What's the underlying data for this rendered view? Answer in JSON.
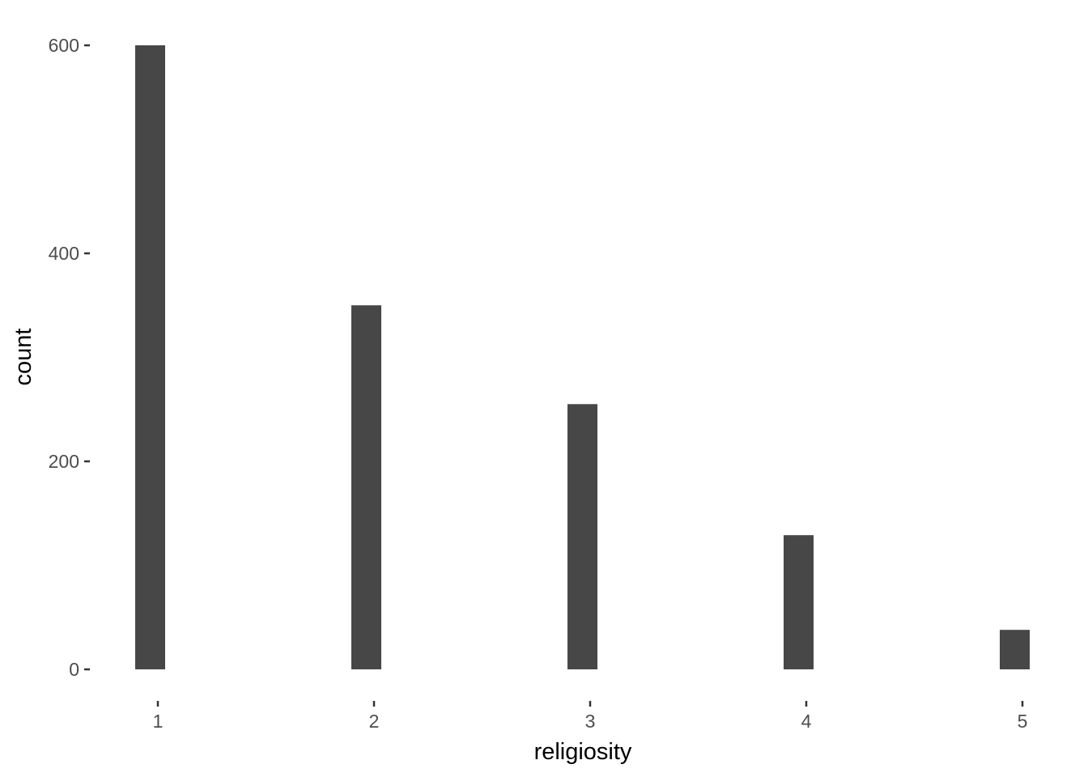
{
  "chart_data": {
    "type": "bar",
    "categories": [
      "1",
      "2",
      "3",
      "4",
      "5"
    ],
    "x": [
      1,
      2,
      3,
      4,
      5
    ],
    "values": [
      600,
      350,
      255,
      129,
      38
    ],
    "title": "",
    "xlabel": "religiosity",
    "ylabel": "count",
    "xlim": [
      0.98,
      5.02
    ],
    "ylim": [
      0,
      600
    ],
    "yticks": [
      0,
      200,
      400,
      600
    ],
    "xticks": [
      1,
      2,
      3,
      4,
      5
    ],
    "grid": false,
    "legend": "none",
    "bar_color": "#474747"
  }
}
